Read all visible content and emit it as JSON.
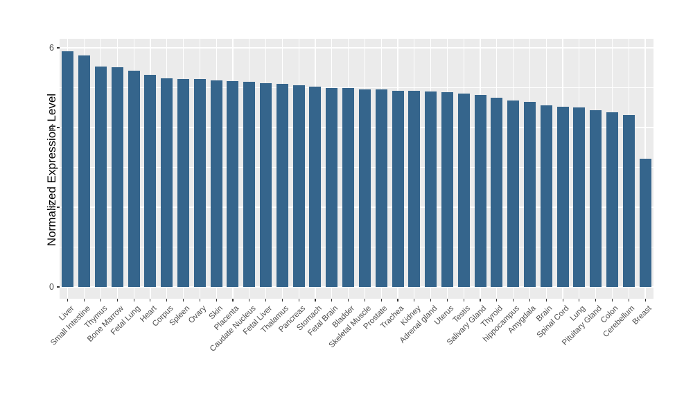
{
  "chart_data": {
    "type": "bar",
    "title": "",
    "xlabel": "",
    "ylabel": "Normalized Expression Level",
    "legend": null,
    "grid": true,
    "ylim": [
      0,
      6.2
    ],
    "yticks": [
      {
        "label": "0",
        "value": 0
      },
      {
        "label": "2",
        "value": 2
      },
      {
        "label": "4",
        "value": 4
      },
      {
        "label": "6",
        "value": 6
      }
    ],
    "yticks_minor": [
      1,
      3,
      5
    ],
    "categories": [
      "Liver",
      "Small Intestine",
      "Thymus",
      "Bone Marrow",
      "Fetal Lung",
      "Heart",
      "Corpus",
      "Spleen",
      "Ovary",
      "Skin",
      "Placenta",
      "Caudate Nucleus",
      "Fetal Liver",
      "Thalamus",
      "Pancreas",
      "Stomach",
      "Fetal Brain",
      "Bladder",
      "Skeletal Muscle",
      "Prostate",
      "Trachea",
      "Kidney",
      "Adrenal gland",
      "Uterus",
      "Testis",
      "Salivary Gland",
      "Thyroid",
      "hippocampus",
      "Amygdala",
      "Brain",
      "Spinal Cord",
      "Lung",
      "Pituitary Gland",
      "Colon",
      "Cerebellum",
      "Breast"
    ],
    "values": [
      5.92,
      5.81,
      5.53,
      5.52,
      5.43,
      5.33,
      5.24,
      5.22,
      5.21,
      5.18,
      5.16,
      5.14,
      5.12,
      5.1,
      5.06,
      5.02,
      5.0,
      4.99,
      4.96,
      4.95,
      4.93,
      4.92,
      4.9,
      4.88,
      4.85,
      4.82,
      4.75,
      4.67,
      4.64,
      4.55,
      4.52,
      4.51,
      4.43,
      4.39,
      4.32,
      3.21
    ],
    "colors": {
      "bar_fill": "#35658c",
      "panel_background": "#ebebeb",
      "gridline": "#ffffff",
      "tick_mark": "#333333",
      "tick_label": "#4d4d4d",
      "axis_title": "#000000",
      "figure_background": "#ffffff"
    }
  }
}
